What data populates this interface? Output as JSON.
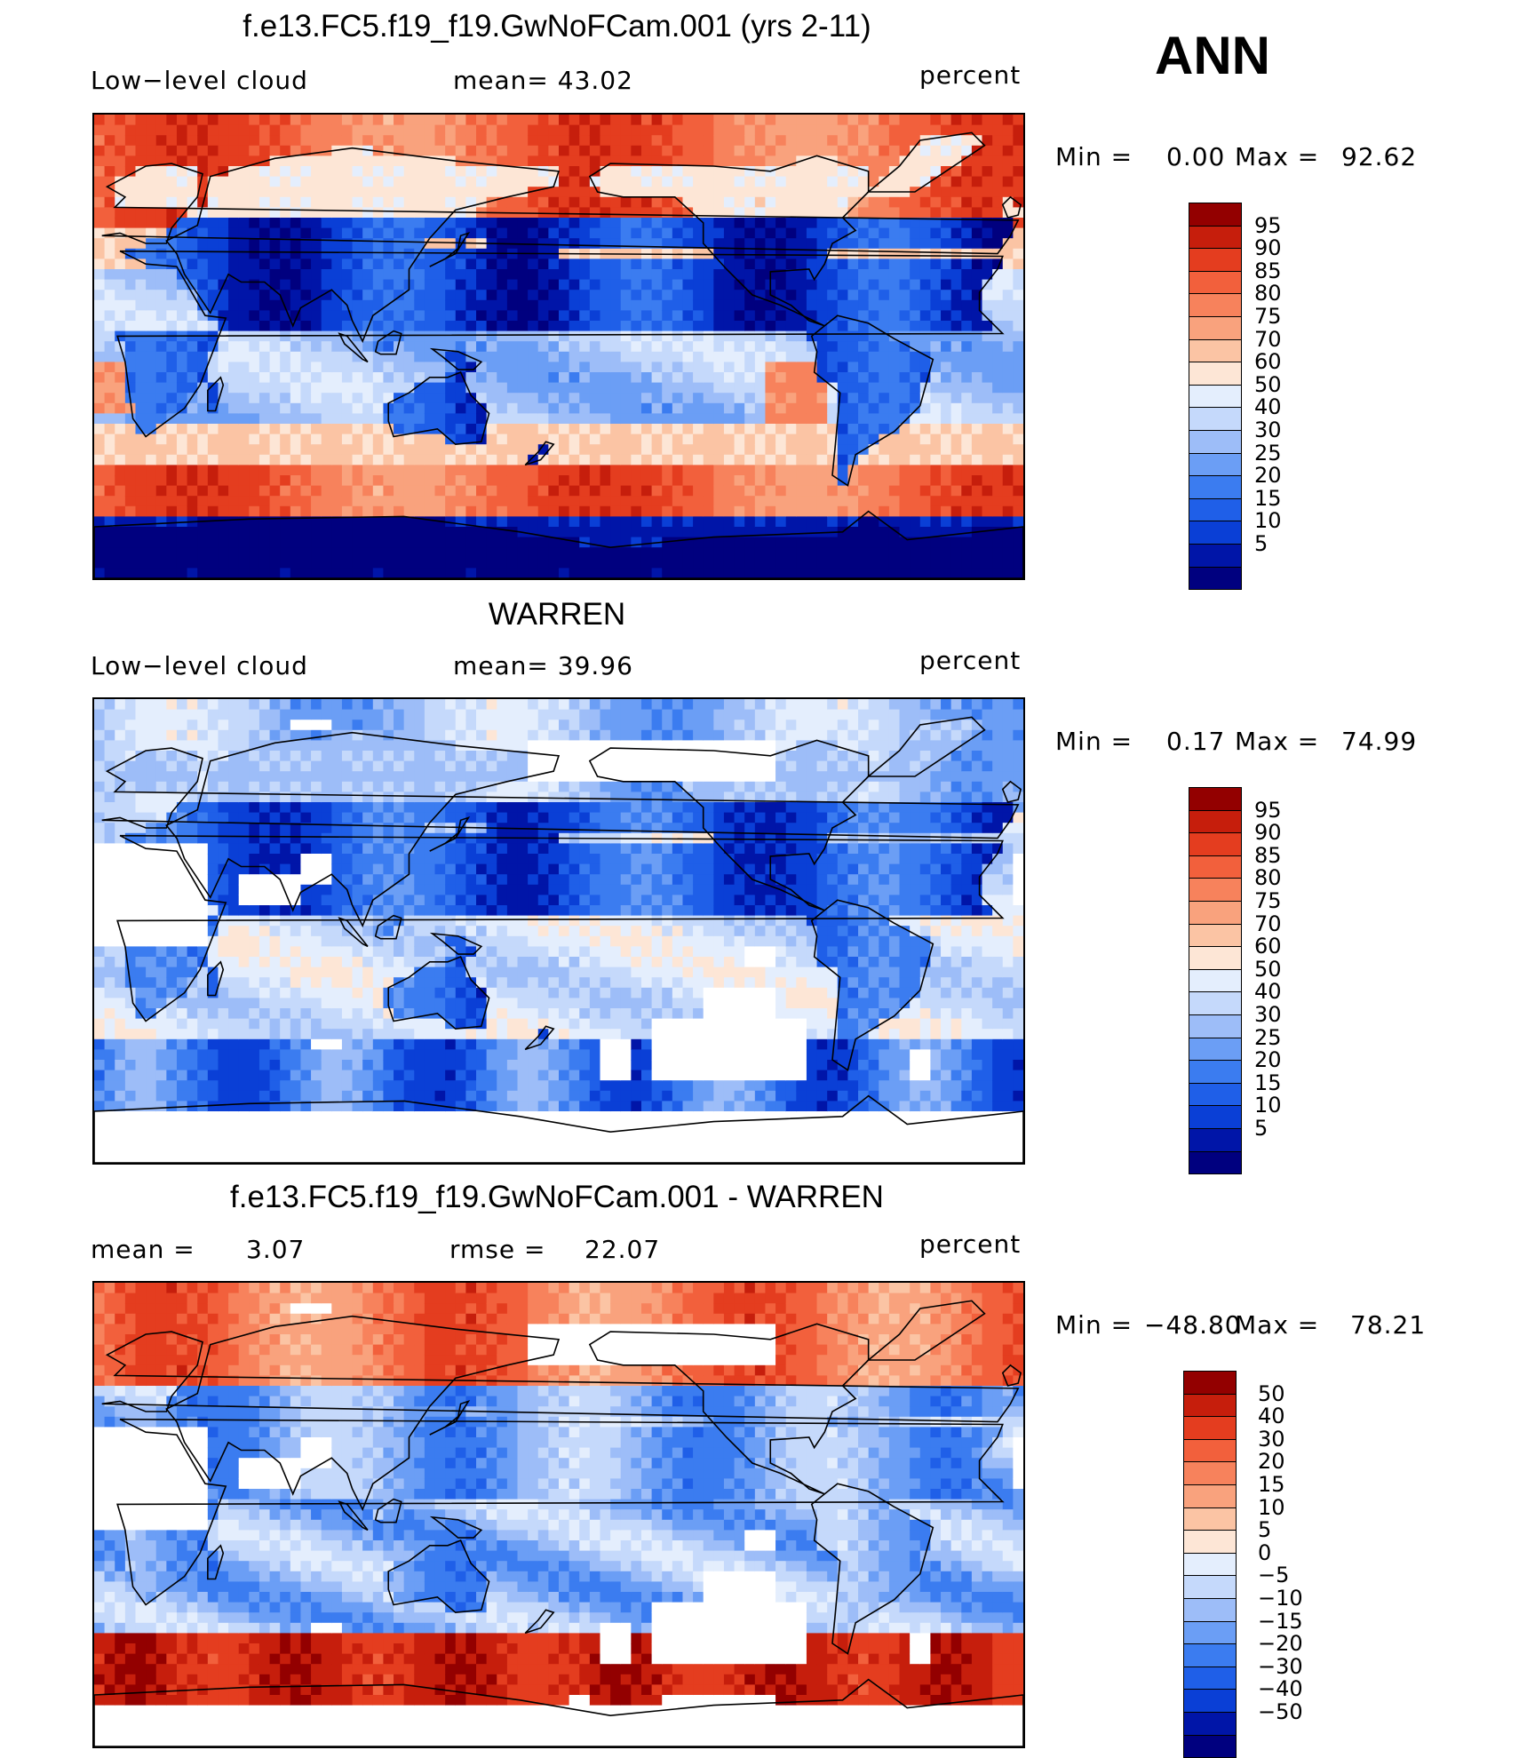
{
  "season": "ANN",
  "colors": {
    "abs_scale": [
      "#00007f",
      "#0015a8",
      "#0a3fd6",
      "#1f5fe8",
      "#3b7cf0",
      "#6b9ef5",
      "#9dbdf8",
      "#c5d9fb",
      "#e4eefd",
      "#fde6d6",
      "#fbc4a4",
      "#f9a27d",
      "#f7825c",
      "#f2603c",
      "#e43d1f",
      "#c61e0c",
      "#930000"
    ],
    "diff_scale": [
      "#00007f",
      "#0015a8",
      "#0a3fd6",
      "#1f5fe8",
      "#3b7cf0",
      "#6b9ef5",
      "#9dbdf8",
      "#c5d9fb",
      "#e4eefd",
      "#fde6d6",
      "#fbc4a4",
      "#f9a27d",
      "#f7825c",
      "#f2603c",
      "#e43d1f",
      "#c61e0c",
      "#930000"
    ],
    "missing": "#ffffff",
    "coast": "#000000"
  },
  "panels": [
    {
      "title": "f.e13.FC5.f19_f19.GwNoFCam.001 (yrs 2-11)",
      "left_label": "Low−level  cloud",
      "center_label": "mean=   43.02",
      "right_label": "percent",
      "min_label": "Min  =",
      "min_value": "0.00",
      "max_label": "Max  =",
      "max_value": "92.62"
    },
    {
      "title": "WARREN",
      "left_label": "Low−level  cloud",
      "center_label": "mean=   39.96",
      "right_label": "percent",
      "min_label": "Min  =",
      "min_value": "0.17",
      "max_label": "Max  =",
      "max_value": "74.99"
    },
    {
      "title": "f.e13.FC5.f19_f19.GwNoFCam.001 - WARREN",
      "left_label": "mean  =",
      "left_value": "3.07",
      "center_label": "rmse  =",
      "center_value": "22.07",
      "right_label": "percent",
      "min_label": "Min  =",
      "min_value": "−48.80",
      "max_label": "Max  =",
      "max_value": "78.21"
    }
  ],
  "chart_data": [
    {
      "type": "heatmap",
      "title": "f.e13.FC5.f19_f19.GwNoFCam.001 (yrs 2-11)",
      "variable": "Low−level  cloud",
      "units": "percent",
      "mean": 43.02,
      "min": 0.0,
      "max": 92.62,
      "colorbar_levels": [
        95,
        90,
        85,
        80,
        75,
        70,
        60,
        50,
        40,
        30,
        25,
        20,
        15,
        10,
        5
      ]
    },
    {
      "type": "heatmap",
      "title": "WARREN",
      "variable": "Low−level  cloud",
      "units": "percent",
      "mean": 39.96,
      "min": 0.17,
      "max": 74.99,
      "colorbar_levels": [
        95,
        90,
        85,
        80,
        75,
        70,
        60,
        50,
        40,
        30,
        25,
        20,
        15,
        10,
        5
      ]
    },
    {
      "type": "heatmap",
      "title": "f.e13.FC5.f19_f19.GwNoFCam.001 - WARREN",
      "units": "percent",
      "mean": 3.07,
      "rmse": 22.07,
      "min": -48.8,
      "max": 78.21,
      "colorbar_levels": [
        "50",
        "40",
        "30",
        "20",
        "15",
        "10",
        "5",
        "0",
        "−5",
        "−10",
        "−15",
        "−20",
        "−30",
        "−40",
        "−50"
      ]
    }
  ]
}
